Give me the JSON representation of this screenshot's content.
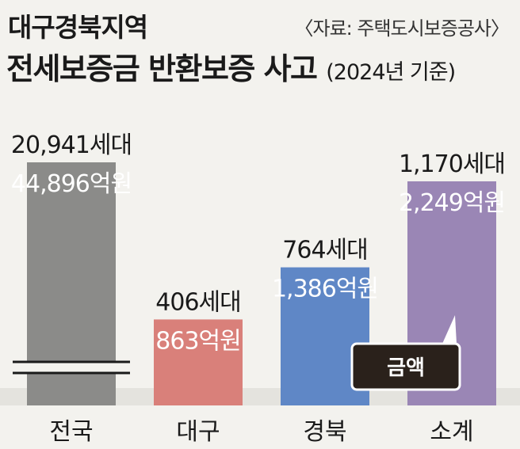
{
  "header": {
    "title_line1": "대구경북지역",
    "title_line2": "전세보증금 반환보증 사고",
    "subtitle": "(2024년 기준)",
    "source": "〈자료: 주택도시보증공사〉"
  },
  "legend": {
    "label": "금액"
  },
  "chart_data": {
    "type": "bar",
    "categories": [
      "전국",
      "대구",
      "경북",
      "소계"
    ],
    "values": [
      44896,
      863,
      1386,
      2249
    ],
    "unit": "억원",
    "axis_break": true,
    "count_labels": [
      "20,941세대",
      "406세대",
      "764세대",
      "1,170세대"
    ],
    "amount_labels": [
      "44,896억원",
      "863억원",
      "1,386억원",
      "2,249억원"
    ],
    "colors": [
      "#8b8b89",
      "#d9807a",
      "#5f87c6",
      "#9a86b5"
    ]
  }
}
